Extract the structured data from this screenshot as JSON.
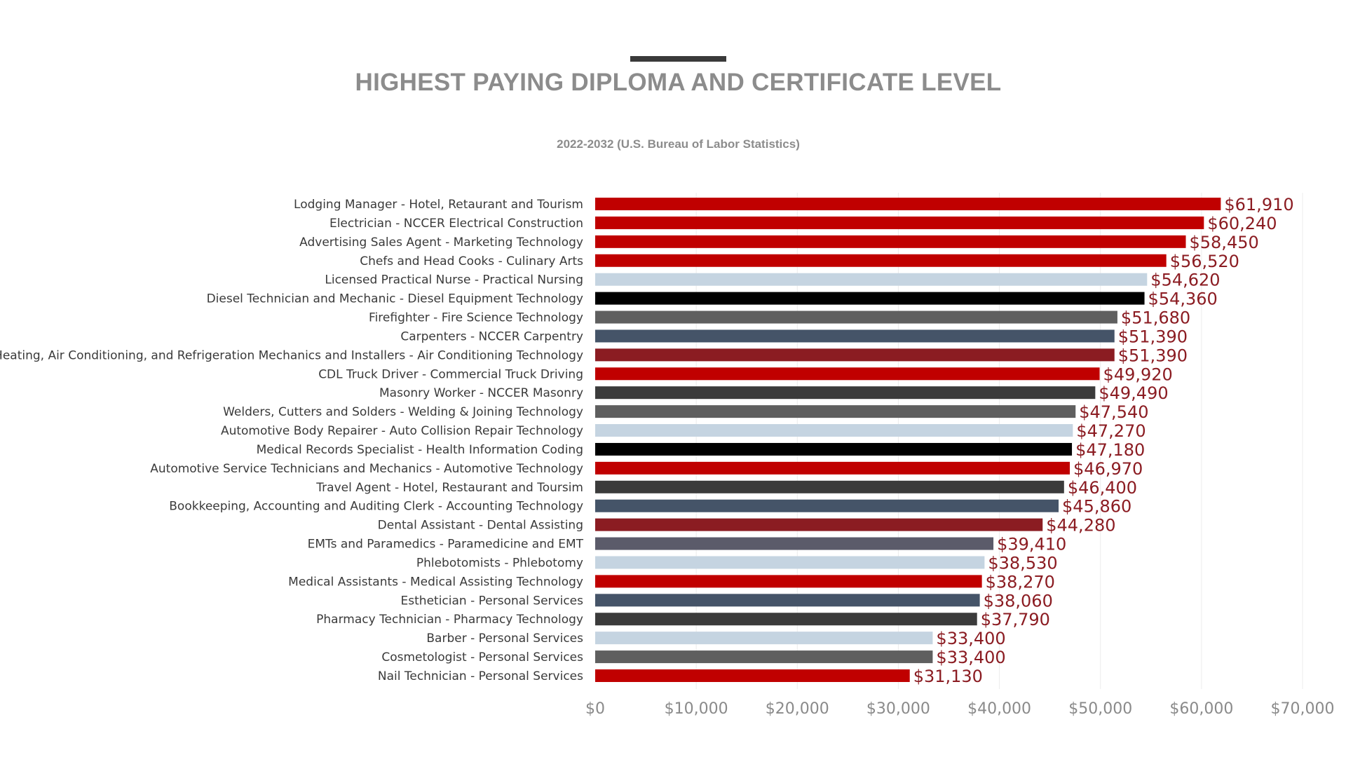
{
  "chart_data": {
    "type": "bar",
    "orientation": "horizontal",
    "title": "HIGHEST PAYING DIPLOMA AND CERTIFICATE LEVEL",
    "subtitle": "2022-2032 (U.S. Bureau of Labor Statistics)",
    "xlim": [
      0,
      70000
    ],
    "xticks": [
      0,
      10000,
      20000,
      30000,
      40000,
      50000,
      60000,
      70000
    ],
    "xtick_labels": [
      "$0",
      "$10,000",
      "$20,000",
      "$30,000",
      "$40,000",
      "$50,000",
      "$60,000",
      "$70,000"
    ],
    "grid": "vertical",
    "legend": "none",
    "value_label_color": "#8b1c22",
    "categories": [
      "Lodging Manager - Hotel, Retaurant and Tourism",
      "Electrician - NCCER Electrical Construction",
      "Advertising Sales Agent - Marketing Technology",
      "Chefs and Head Cooks - Culinary Arts",
      "Licensed Practical Nurse - Practical Nursing",
      "Diesel Technician and Mechanic - Diesel Equipment Technology",
      "Firefighter - Fire Science Technology",
      "Carpenters - NCCER Carpentry",
      "Heating, Air Conditioning, and Refrigeration Mechanics and Installers - Air Conditioning Technology",
      "CDL Truck Driver - Commercial Truck Driving",
      "Masonry Worker - NCCER Masonry",
      "Welders, Cutters and Solders - Welding & Joining Technology",
      "Automotive Body Repairer - Auto Collision Repair Technology",
      "Medical Records Specialist - Health Information Coding",
      "Automotive Service Technicians and Mechanics - Automotive Technology",
      "Travel Agent - Hotel, Restaurant and Toursim",
      "Bookkeeping, Accounting and Auditing Clerk - Accounting Technology",
      "Dental Assistant - Dental Assisting",
      "EMTs and Paramedics - Paramedicine and EMT",
      "Phlebotomists - Phlebotomy",
      "Medical Assistants - Medical Assisting Technology",
      "Esthetician - Personal Services",
      "Pharmacy Technician - Pharmacy Technology",
      "Barber - Personal Services",
      "Cosmetologist - Personal Services",
      "Nail Technician - Personal Services"
    ],
    "values": [
      61910,
      60240,
      58450,
      56520,
      54620,
      54360,
      51680,
      51390,
      51390,
      49920,
      49490,
      47540,
      47270,
      47180,
      46970,
      46400,
      45860,
      44280,
      39410,
      38530,
      38270,
      38060,
      37790,
      33400,
      33400,
      31130
    ],
    "value_labels": [
      "$61,910",
      "$60,240",
      "$58,450",
      "$56,520",
      "$54,620",
      "$54,360",
      "$51,680",
      "$51,390",
      "$51,390",
      "$49,920",
      "$49,490",
      "$47,540",
      "$47,270",
      "$47,180",
      "$46,970",
      "$46,400",
      "$45,860",
      "$44,280",
      "$39,410",
      "$38,530",
      "$38,270",
      "$38,060",
      "$37,790",
      "$33,400",
      "$33,400",
      "$31,130"
    ],
    "bar_colors": [
      "#c00000",
      "#c00000",
      "#c00000",
      "#c00000",
      "#c5d4e1",
      "#000000",
      "#5f5f5f",
      "#455468",
      "#8b1c22",
      "#c00000",
      "#3b3b3b",
      "#5f5f5f",
      "#c5d4e1",
      "#000000",
      "#c00000",
      "#3b3b3b",
      "#455468",
      "#8b1c22",
      "#5b5b6a",
      "#c5d4e1",
      "#c00000",
      "#455468",
      "#3b3b3b",
      "#c5d4e1",
      "#5f5f5f",
      "#c00000"
    ]
  }
}
